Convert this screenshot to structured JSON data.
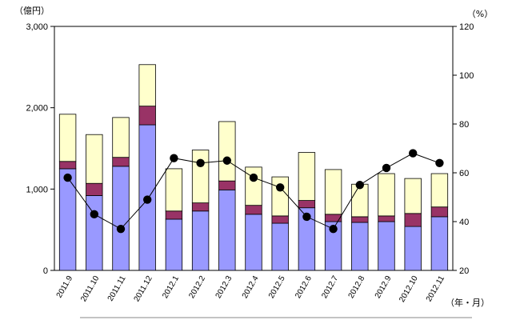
{
  "chart_data": {
    "type": "bar",
    "stacked": true,
    "categories": [
      "2011.9",
      "2011.10",
      "2011.11",
      "2011.12",
      "2012.1",
      "2012.2",
      "2012.3",
      "2012.4",
      "2012.5",
      "2012.6",
      "2012.7",
      "2012.8",
      "2012.9",
      "2012.10",
      "2012.11"
    ],
    "series": [
      {
        "kind": "bar",
        "axis": "left",
        "color": "#9999ff",
        "values": [
          1250,
          920,
          1280,
          1790,
          630,
          730,
          990,
          690,
          580,
          770,
          600,
          590,
          600,
          540,
          660
        ]
      },
      {
        "kind": "bar",
        "axis": "left",
        "color": "#993366",
        "values": [
          90,
          150,
          110,
          230,
          100,
          100,
          110,
          110,
          90,
          90,
          90,
          70,
          70,
          160,
          120
        ]
      },
      {
        "kind": "bar",
        "axis": "left",
        "color": "#ffffcc",
        "values": [
          580,
          600,
          490,
          510,
          520,
          650,
          730,
          470,
          480,
          590,
          550,
          400,
          520,
          430,
          410
        ]
      },
      {
        "kind": "line",
        "axis": "right",
        "color": "#000000",
        "values": [
          58,
          43,
          37,
          49,
          66,
          64,
          65,
          58,
          54,
          42,
          37,
          55,
          62,
          68,
          64
        ]
      }
    ],
    "y_left": {
      "unit": "（億円）",
      "ylim": [
        0,
        3000
      ],
      "ticks": [
        "0",
        "1,000",
        "2,000",
        "3,000"
      ],
      "tick_values": [
        0,
        1000,
        2000,
        3000
      ]
    },
    "y_right": {
      "unit": "（%）",
      "ylim": [
        20,
        120
      ],
      "ticks": [
        "20",
        "40",
        "60",
        "80",
        "100",
        "120"
      ],
      "tick_values": [
        20,
        40,
        60,
        80,
        100,
        120
      ]
    },
    "xlabel": "（年・月）",
    "grid": false,
    "legend": "none"
  }
}
